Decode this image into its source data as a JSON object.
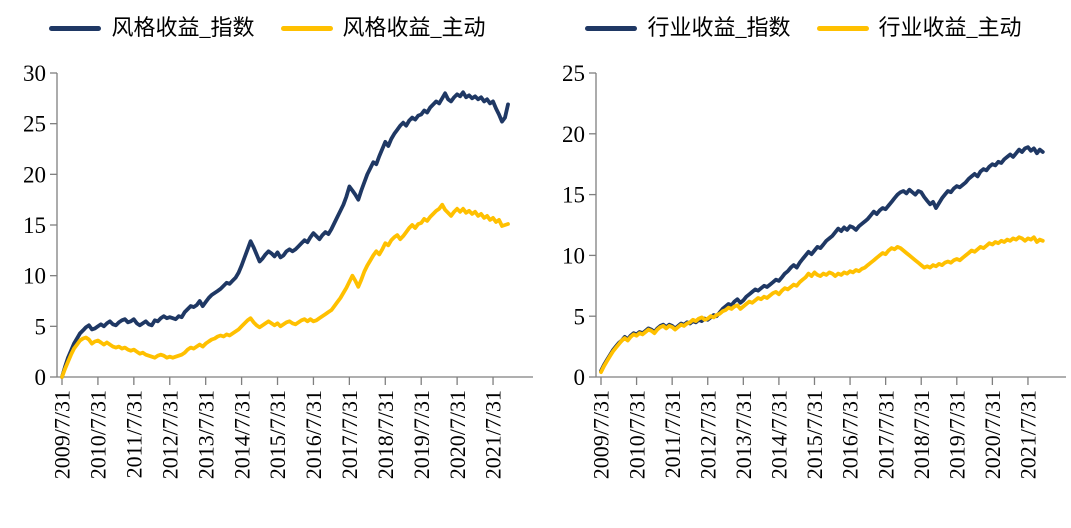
{
  "page": {
    "background": "#ffffff"
  },
  "colors": {
    "index_line": "#1f3864",
    "active_line": "#ffc000",
    "axis": "#7f7f7f",
    "text": "#000000"
  },
  "chart_data": [
    {
      "type": "line",
      "title": "",
      "xlabel": "",
      "ylabel": "",
      "legend_position": "top",
      "grid": false,
      "ylim": [
        0,
        30
      ],
      "y_ticks": [
        0,
        5,
        10,
        15,
        20,
        25,
        30
      ],
      "x_start": "2009-07",
      "x_interval_months": 1,
      "x_points": 150,
      "x_tick_every_months": 12,
      "x_tick_labels": [
        "2009/7/31",
        "2010/7/31",
        "2011/7/31",
        "2012/7/31",
        "2013/7/31",
        "2014/7/31",
        "2015/7/31",
        "2016/7/31",
        "2017/7/31",
        "2018/7/31",
        "2019/7/31",
        "2020/7/31",
        "2021/7/31"
      ],
      "series": [
        {
          "name": "风格收益_指数",
          "color": "#1f3864",
          "values": [
            0.0,
            1.0,
            1.9,
            2.6,
            3.3,
            3.8,
            4.3,
            4.6,
            4.9,
            5.1,
            4.7,
            4.8,
            5.0,
            5.2,
            5.0,
            5.3,
            5.5,
            5.2,
            5.1,
            5.4,
            5.6,
            5.7,
            5.4,
            5.5,
            5.7,
            5.3,
            5.1,
            5.3,
            5.5,
            5.2,
            5.1,
            5.6,
            5.5,
            5.8,
            6.0,
            5.8,
            5.9,
            5.8,
            5.7,
            6.0,
            5.9,
            6.4,
            6.7,
            7.0,
            6.9,
            7.1,
            7.5,
            7.0,
            7.4,
            7.8,
            8.1,
            8.3,
            8.5,
            8.7,
            9.0,
            9.3,
            9.2,
            9.5,
            9.8,
            10.3,
            11.0,
            11.8,
            12.6,
            13.4,
            12.8,
            12.1,
            11.4,
            11.7,
            12.1,
            12.4,
            12.2,
            11.9,
            12.3,
            11.8,
            12.0,
            12.4,
            12.6,
            12.4,
            12.6,
            12.9,
            13.2,
            13.5,
            13.3,
            13.8,
            14.2,
            13.9,
            13.6,
            14.0,
            14.3,
            14.1,
            14.6,
            15.2,
            15.8,
            16.4,
            17.0,
            17.8,
            18.8,
            18.4,
            18.0,
            17.5,
            18.4,
            19.2,
            20.0,
            20.6,
            21.2,
            21.0,
            21.8,
            22.5,
            23.2,
            22.8,
            23.5,
            24.0,
            24.4,
            24.8,
            25.1,
            24.8,
            25.3,
            25.6,
            25.4,
            25.8,
            25.9,
            26.3,
            26.1,
            26.6,
            26.9,
            27.2,
            27.0,
            27.5,
            28.0,
            27.4,
            27.2,
            27.6,
            27.9,
            27.7,
            28.1,
            27.6,
            27.8,
            27.5,
            27.7,
            27.4,
            27.6,
            27.2,
            27.4,
            27.0,
            27.2,
            26.5,
            25.9,
            25.2,
            25.6,
            26.9
          ]
        },
        {
          "name": "风格收益_主动",
          "color": "#ffc000",
          "values": [
            0.0,
            0.8,
            1.5,
            2.2,
            2.8,
            3.2,
            3.6,
            3.8,
            3.9,
            3.7,
            3.3,
            3.5,
            3.6,
            3.4,
            3.2,
            3.4,
            3.2,
            3.0,
            2.9,
            3.0,
            2.8,
            2.9,
            2.7,
            2.6,
            2.7,
            2.5,
            2.3,
            2.4,
            2.2,
            2.1,
            2.0,
            1.9,
            2.1,
            2.2,
            2.1,
            1.9,
            2.0,
            1.9,
            2.0,
            2.1,
            2.2,
            2.4,
            2.7,
            2.9,
            2.8,
            3.0,
            3.2,
            3.0,
            3.3,
            3.5,
            3.7,
            3.8,
            4.0,
            4.1,
            4.0,
            4.2,
            4.1,
            4.3,
            4.5,
            4.7,
            5.0,
            5.3,
            5.6,
            5.8,
            5.4,
            5.1,
            4.9,
            5.1,
            5.3,
            5.5,
            5.3,
            5.1,
            5.3,
            5.0,
            5.2,
            5.4,
            5.5,
            5.3,
            5.2,
            5.4,
            5.6,
            5.7,
            5.5,
            5.7,
            5.5,
            5.6,
            5.8,
            6.0,
            6.2,
            6.4,
            6.6,
            7.0,
            7.4,
            7.8,
            8.3,
            8.8,
            9.4,
            10.0,
            9.5,
            8.9,
            9.6,
            10.4,
            11.0,
            11.5,
            12.0,
            12.4,
            12.1,
            12.6,
            13.2,
            13.0,
            13.5,
            13.8,
            14.0,
            13.6,
            13.9,
            14.3,
            14.7,
            15.0,
            14.7,
            15.1,
            15.2,
            15.6,
            15.4,
            15.8,
            16.1,
            16.4,
            16.6,
            17.0,
            16.5,
            16.2,
            15.9,
            16.3,
            16.6,
            16.3,
            16.6,
            16.2,
            16.4,
            16.1,
            16.3,
            15.9,
            16.1,
            15.7,
            15.9,
            15.5,
            15.7,
            15.3,
            15.5,
            14.9,
            15.0,
            15.1
          ]
        }
      ]
    },
    {
      "type": "line",
      "title": "",
      "xlabel": "",
      "ylabel": "",
      "legend_position": "top",
      "grid": false,
      "ylim": [
        0,
        25
      ],
      "y_ticks": [
        0,
        5,
        10,
        15,
        20,
        25
      ],
      "x_start": "2009-07",
      "x_interval_months": 1,
      "x_points": 150,
      "x_tick_every_months": 12,
      "x_tick_labels": [
        "2009/7/31",
        "2010/7/31",
        "2011/7/31",
        "2012/7/31",
        "2013/7/31",
        "2014/7/31",
        "2015/7/31",
        "2016/7/31",
        "2017/7/31",
        "2018/7/31",
        "2019/7/31",
        "2020/7/31",
        "2021/7/31"
      ],
      "series": [
        {
          "name": "行业收益_指数",
          "color": "#1f3864",
          "values": [
            0.5,
            1.0,
            1.4,
            1.8,
            2.2,
            2.5,
            2.8,
            3.0,
            3.3,
            3.1,
            3.4,
            3.6,
            3.5,
            3.7,
            3.6,
            3.8,
            4.0,
            3.9,
            3.7,
            4.0,
            4.2,
            4.3,
            4.1,
            4.3,
            4.2,
            4.0,
            4.2,
            4.4,
            4.3,
            4.5,
            4.4,
            4.6,
            4.5,
            4.7,
            4.6,
            4.8,
            4.7,
            4.9,
            5.1,
            5.0,
            5.3,
            5.6,
            5.8,
            6.0,
            5.9,
            6.2,
            6.4,
            6.1,
            6.3,
            6.6,
            6.8,
            7.0,
            7.2,
            7.1,
            7.3,
            7.5,
            7.4,
            7.6,
            7.8,
            8.0,
            7.9,
            8.2,
            8.5,
            8.7,
            9.0,
            9.2,
            9.0,
            9.4,
            9.7,
            10.0,
            10.3,
            10.1,
            10.4,
            10.7,
            10.6,
            10.9,
            11.2,
            11.4,
            11.6,
            11.9,
            12.2,
            12.0,
            12.3,
            12.1,
            12.4,
            12.3,
            12.1,
            12.4,
            12.6,
            12.8,
            13.0,
            13.3,
            13.6,
            13.4,
            13.7,
            13.9,
            13.8,
            14.1,
            14.4,
            14.7,
            15.0,
            15.2,
            15.3,
            15.1,
            15.4,
            15.2,
            15.0,
            15.3,
            15.2,
            14.8,
            14.5,
            14.2,
            14.4,
            13.9,
            14.3,
            14.7,
            15.0,
            15.3,
            15.2,
            15.5,
            15.7,
            15.6,
            15.8,
            16.0,
            16.3,
            16.5,
            16.7,
            16.5,
            16.9,
            17.1,
            17.0,
            17.3,
            17.5,
            17.4,
            17.7,
            17.6,
            17.9,
            18.1,
            18.3,
            18.1,
            18.4,
            18.7,
            18.5,
            18.8,
            18.9,
            18.6,
            18.8,
            18.4,
            18.7,
            18.5
          ]
        },
        {
          "name": "行业收益_主动",
          "color": "#ffc000",
          "values": [
            0.4,
            0.9,
            1.3,
            1.7,
            2.1,
            2.4,
            2.7,
            3.0,
            3.2,
            3.0,
            3.3,
            3.5,
            3.4,
            3.6,
            3.5,
            3.7,
            3.9,
            3.8,
            3.6,
            3.9,
            4.1,
            4.2,
            4.0,
            4.2,
            4.1,
            3.9,
            4.1,
            4.3,
            4.2,
            4.4,
            4.5,
            4.7,
            4.6,
            4.8,
            4.9,
            4.7,
            4.8,
            5.0,
            4.9,
            5.1,
            5.2,
            5.4,
            5.5,
            5.7,
            5.6,
            5.8,
            5.9,
            5.6,
            5.8,
            6.0,
            6.2,
            6.1,
            6.3,
            6.5,
            6.4,
            6.6,
            6.5,
            6.7,
            6.9,
            7.0,
            6.8,
            7.1,
            7.3,
            7.2,
            7.4,
            7.6,
            7.5,
            7.8,
            8.0,
            8.2,
            8.5,
            8.3,
            8.6,
            8.4,
            8.3,
            8.5,
            8.4,
            8.6,
            8.5,
            8.3,
            8.5,
            8.4,
            8.6,
            8.5,
            8.7,
            8.6,
            8.8,
            8.7,
            8.9,
            9.0,
            9.2,
            9.4,
            9.6,
            9.8,
            10.0,
            10.2,
            10.1,
            10.4,
            10.6,
            10.5,
            10.7,
            10.6,
            10.4,
            10.2,
            10.0,
            9.8,
            9.6,
            9.4,
            9.2,
            9.0,
            9.1,
            9.0,
            9.2,
            9.1,
            9.3,
            9.2,
            9.4,
            9.5,
            9.4,
            9.6,
            9.7,
            9.6,
            9.8,
            10.0,
            10.2,
            10.4,
            10.3,
            10.5,
            10.7,
            10.6,
            10.8,
            11.0,
            10.9,
            11.1,
            11.0,
            11.2,
            11.1,
            11.3,
            11.2,
            11.4,
            11.3,
            11.5,
            11.4,
            11.2,
            11.4,
            11.3,
            11.5,
            11.1,
            11.3,
            11.2
          ]
        }
      ]
    }
  ]
}
